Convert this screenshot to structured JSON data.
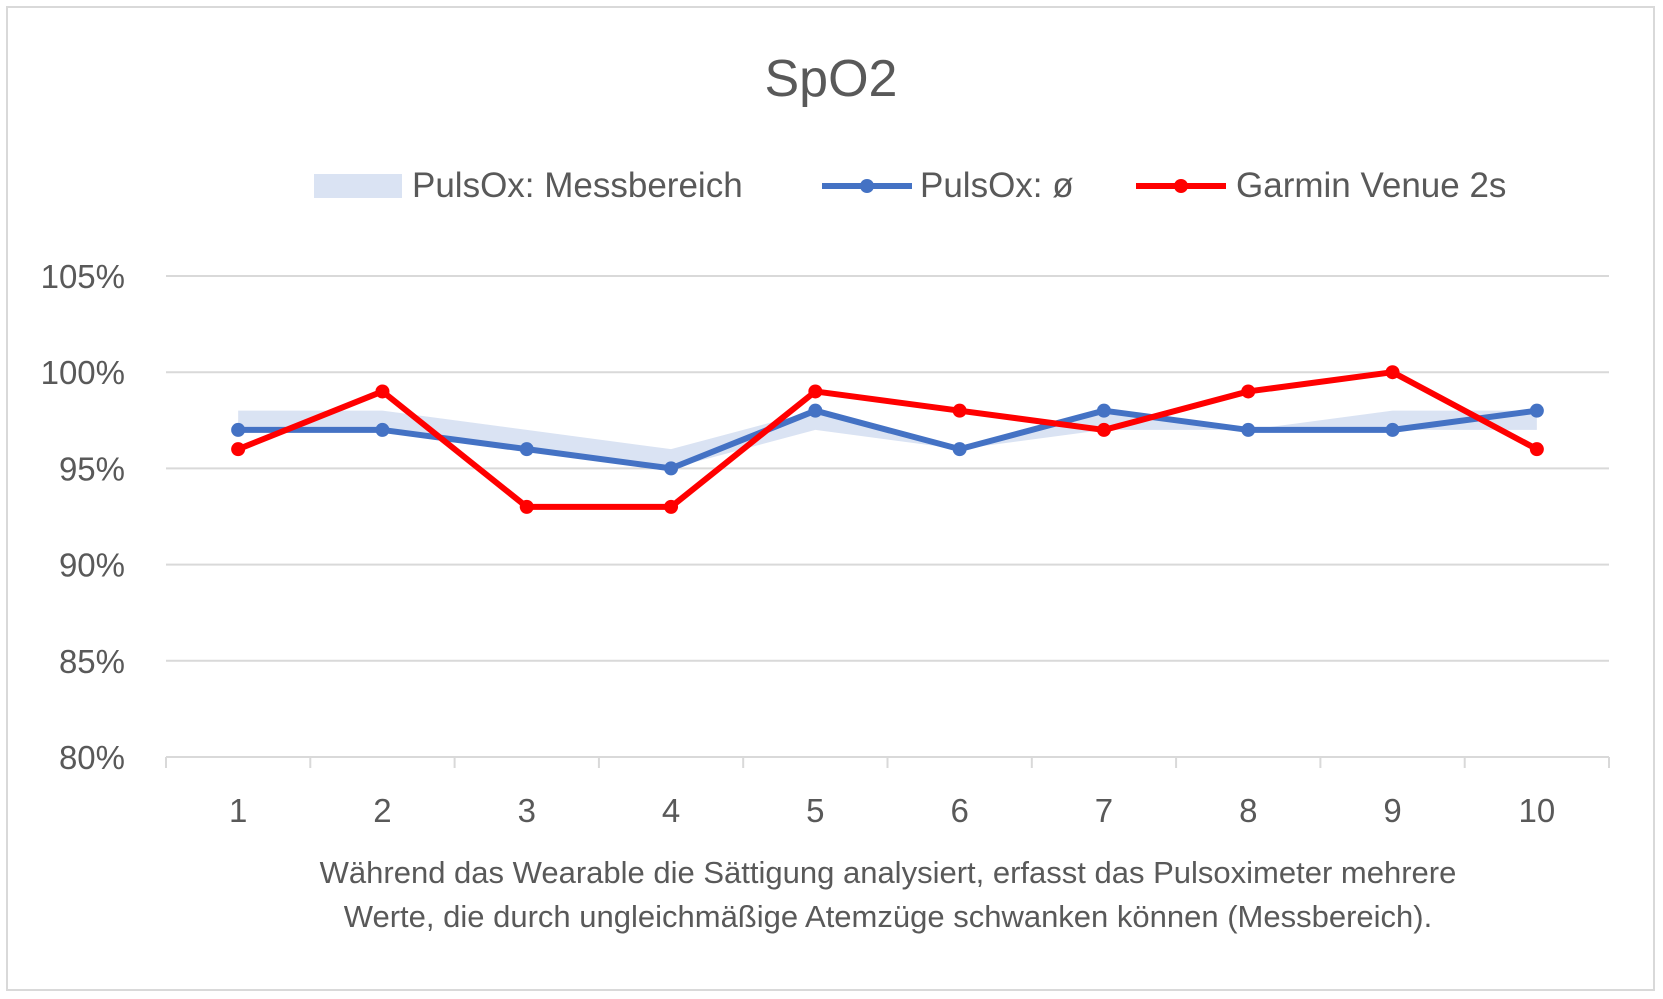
{
  "chart_data": {
    "type": "line",
    "title": "SpO2",
    "categories": [
      "1",
      "2",
      "3",
      "4",
      "5",
      "6",
      "7",
      "8",
      "9",
      "10"
    ],
    "y_tick_labels": [
      "80%",
      "85%",
      "90%",
      "95%",
      "100%",
      "105%"
    ],
    "ylim": [
      80,
      105
    ],
    "ystep": 5,
    "grid": true,
    "legend_position": "top",
    "xlabel_lines": [
      "Während das Wearable die Sättigung analysiert, erfasst das Pulsoximeter mehrere",
      "Werte, die durch ungleichmäßige Atemzüge schwanken können (Messbereich)."
    ],
    "band": {
      "name": "PulsOx: Messbereich",
      "color": "#dae3f3",
      "low": [
        97,
        97,
        96,
        95,
        97,
        96,
        97,
        97,
        97,
        97
      ],
      "high": [
        98,
        98,
        97,
        96,
        98,
        96,
        98,
        97,
        98,
        98
      ]
    },
    "series": [
      {
        "name": "PulsOx: ø",
        "color": "#4472c4",
        "values": [
          97,
          97,
          96,
          95,
          98,
          96,
          98,
          97,
          97,
          98
        ]
      },
      {
        "name": "Garmin Venue 2s",
        "color": "#ff0000",
        "values": [
          96,
          99,
          93,
          93,
          99,
          98,
          97,
          99,
          100,
          96
        ]
      }
    ]
  }
}
